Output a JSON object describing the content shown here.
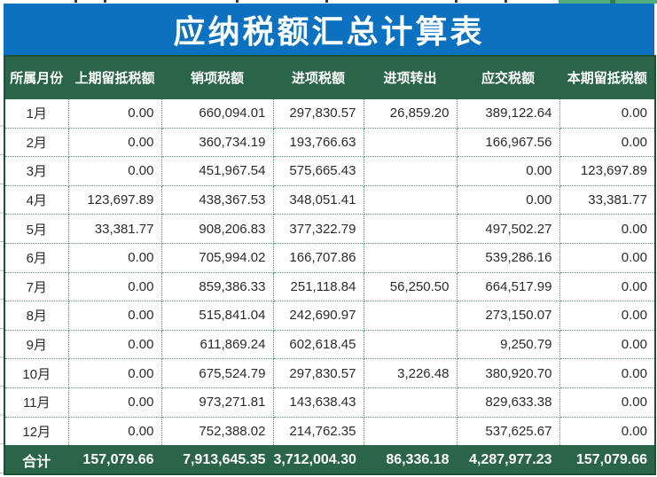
{
  "title": "应纳税额汇总计算表",
  "table": {
    "headers": [
      "所属月份",
      "上期留抵税额",
      "销项税额",
      "进项税额",
      "进项转出",
      "应交税额",
      "本期留抵税额"
    ],
    "rows": [
      {
        "cells": [
          "1月",
          "0.00",
          "660,094.01",
          "297,830.57",
          "26,859.20",
          "389,122.64",
          "0.00"
        ]
      },
      {
        "cells": [
          "2月",
          "0.00",
          "360,734.19",
          "193,766.63",
          "",
          "166,967.56",
          "0.00"
        ]
      },
      {
        "cells": [
          "3月",
          "0.00",
          "451,967.54",
          "575,665.43",
          "",
          "0.00",
          "123,697.89"
        ]
      },
      {
        "cells": [
          "4月",
          "123,697.89",
          "438,367.53",
          "348,051.41",
          "",
          "0.00",
          "33,381.77"
        ]
      },
      {
        "cells": [
          "5月",
          "33,381.77",
          "908,206.83",
          "377,322.79",
          "",
          "497,502.27",
          "0.00"
        ]
      },
      {
        "cells": [
          "6月",
          "0.00",
          "705,994.02",
          "166,707.86",
          "",
          "539,286.16",
          "0.00"
        ]
      },
      {
        "cells": [
          "7月",
          "0.00",
          "859,386.33",
          "251,118.84",
          "56,250.50",
          "664,517.99",
          "0.00"
        ]
      },
      {
        "cells": [
          "8月",
          "0.00",
          "515,841.04",
          "242,690.97",
          "",
          "273,150.07",
          "0.00"
        ]
      },
      {
        "cells": [
          "9月",
          "0.00",
          "611,869.24",
          "602,618.45",
          "",
          "9,250.79",
          "0.00"
        ]
      },
      {
        "cells": [
          "10月",
          "0.00",
          "675,524.79",
          "297,830.57",
          "3,226.48",
          "380,920.70",
          "0.00"
        ]
      },
      {
        "cells": [
          "11月",
          "0.00",
          "973,271.81",
          "143,638.43",
          "",
          "829,633.38",
          "0.00"
        ]
      },
      {
        "cells": [
          "12月",
          "0.00",
          "752,388.02",
          "214,762.35",
          "",
          "537,625.67",
          "0.00"
        ]
      }
    ],
    "total": {
      "cells": [
        "合计",
        "157,079.66",
        "7,913,645.35",
        "3,712,004.30",
        "86,336.18",
        "4,287,977.23",
        "157,079.66"
      ]
    }
  },
  "colors": {
    "title_bar_blue": "#0d71c2",
    "header_green": "#2a6449",
    "outer_border_green": "#1c4f35",
    "grid_dotted_green": "#5a9377",
    "top_edge_green": "#52ad7e",
    "cell_text": "#2b2b2b"
  }
}
